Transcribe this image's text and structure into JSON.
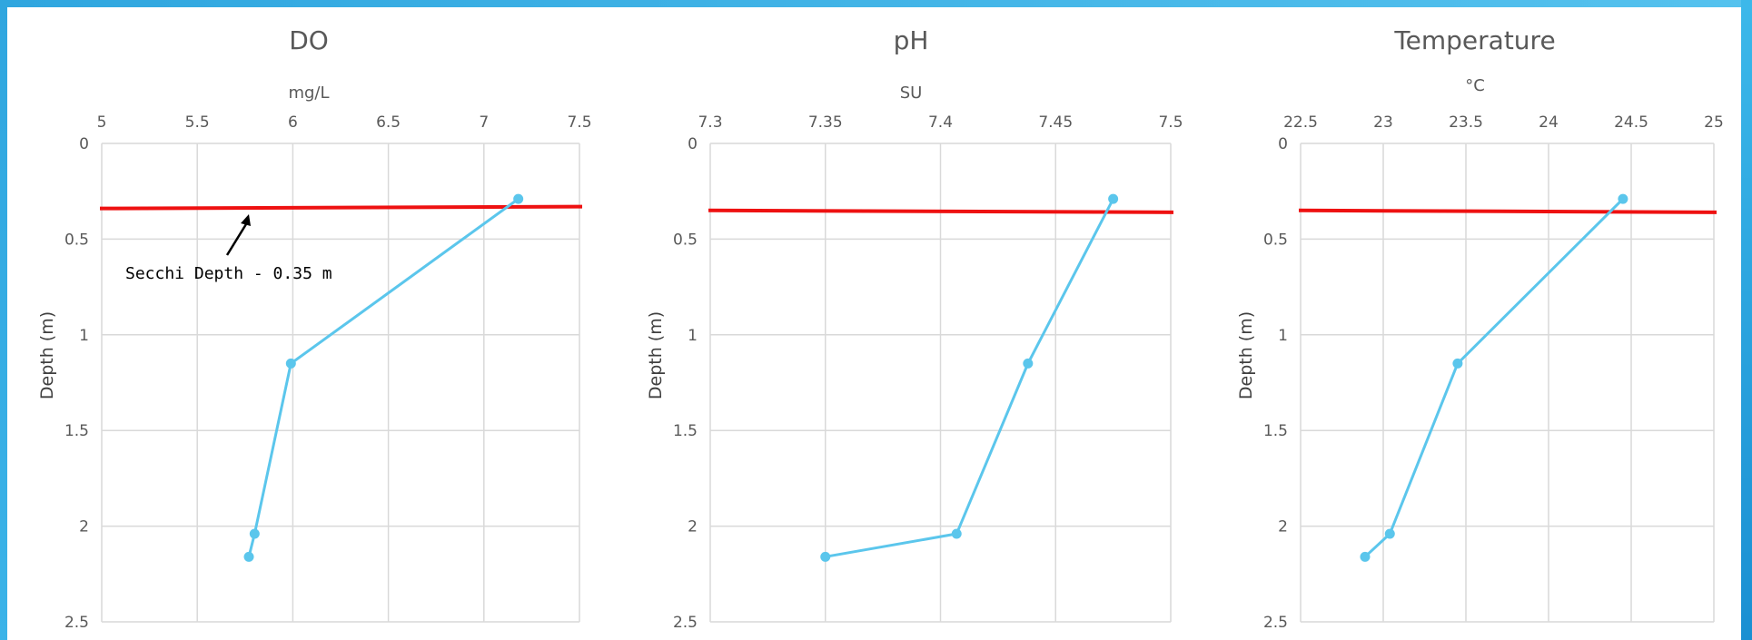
{
  "chart_data": [
    {
      "type": "line",
      "title": "DO",
      "xlabel": "mg/L",
      "ylabel": "Depth (m)",
      "xlim": [
        5,
        7.5
      ],
      "ylim": [
        0,
        2.5
      ],
      "y_inverted": true,
      "x_axis_position": "top",
      "x_ticks": [
        "5",
        "5.5",
        "6",
        "6.5",
        "7",
        "7.5"
      ],
      "y_ticks": [
        "0",
        "0.5",
        "1",
        "1.5",
        "2",
        "2.5"
      ],
      "grid": true,
      "series": [
        {
          "x": [
            7.18,
            5.99,
            5.8,
            5.77
          ],
          "y": [
            0.29,
            1.15,
            2.04,
            2.16
          ],
          "color": "#5bc6ec"
        }
      ],
      "reference_line": {
        "y_start": 0.34,
        "y_end": 0.33,
        "color": "#ee1111"
      },
      "annotation": {
        "text": "Secchi Depth - 0.35 m",
        "arrow_to": [
          5.77,
          0.37
        ]
      }
    },
    {
      "type": "line",
      "title": "pH",
      "xlabel": "SU",
      "ylabel": "Depth (m)",
      "xlim": [
        7.3,
        7.5
      ],
      "ylim": [
        0,
        2.5
      ],
      "y_inverted": true,
      "x_axis_position": "top",
      "x_ticks": [
        "7.3",
        "7.35",
        "7.4",
        "7.45",
        "7.5"
      ],
      "y_ticks": [
        "0",
        "0.5",
        "1",
        "1.5",
        "2",
        "2.5"
      ],
      "grid": true,
      "series": [
        {
          "x": [
            7.475,
            7.438,
            7.407,
            7.35
          ],
          "y": [
            0.29,
            1.15,
            2.04,
            2.16
          ],
          "color": "#5bc6ec"
        }
      ],
      "reference_line": {
        "y_start": 0.35,
        "y_end": 0.36,
        "color": "#ee1111"
      }
    },
    {
      "type": "line",
      "title": "Temperature",
      "xlabel": "°C",
      "ylabel": "Depth (m)",
      "xlim": [
        22.5,
        25
      ],
      "ylim": [
        0,
        2.5
      ],
      "y_inverted": true,
      "x_axis_position": "top",
      "x_ticks": [
        "22.5",
        "23",
        "23.5",
        "24",
        "24.5",
        "25"
      ],
      "y_ticks": [
        "0",
        "0.5",
        "1",
        "1.5",
        "2",
        "2.5"
      ],
      "grid": true,
      "series": [
        {
          "x": [
            24.45,
            23.45,
            23.04,
            22.89
          ],
          "y": [
            0.29,
            1.15,
            2.04,
            2.16
          ],
          "color": "#5bc6ec"
        }
      ],
      "reference_line": {
        "y_start": 0.35,
        "y_end": 0.36,
        "color": "#ee1111"
      }
    }
  ]
}
